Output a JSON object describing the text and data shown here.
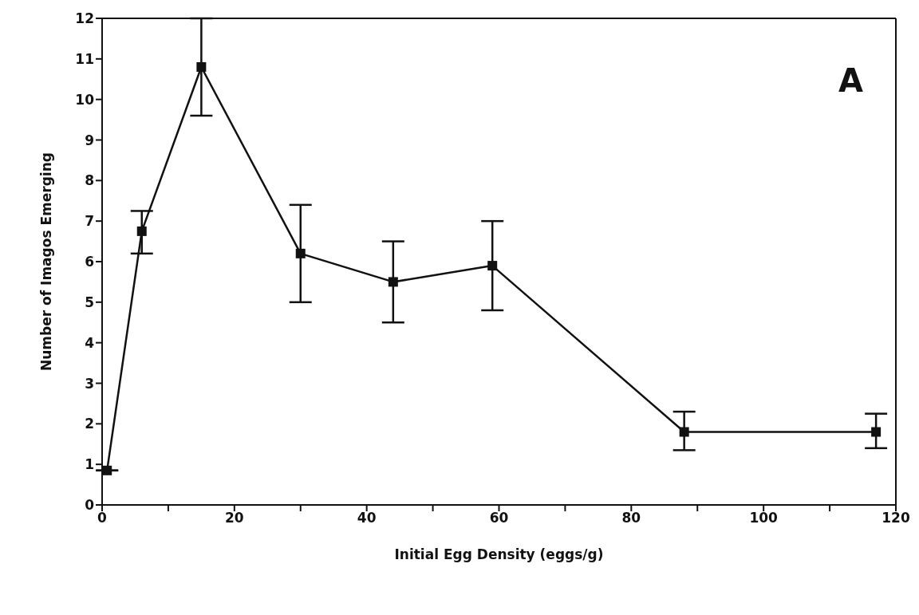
{
  "chart_data": {
    "type": "line",
    "xlabel": "Initial Egg Density   (eggs/g)",
    "ylabel": "Number of Imagos Emerging",
    "annotations": [
      "A"
    ],
    "x": [
      0.75,
      6,
      15,
      30,
      44,
      59,
      88,
      117
    ],
    "series": [
      {
        "color": "#111111",
        "values": [
          0.85,
          6.75,
          10.8,
          6.2,
          5.5,
          5.9,
          1.8,
          1.8
        ],
        "errors": [
          null,
          [
            6.2,
            7.25
          ],
          [
            9.6,
            12
          ],
          [
            5.0,
            7.4
          ],
          [
            4.5,
            6.5
          ],
          [
            4.8,
            7.0
          ],
          [
            1.35,
            2.3
          ],
          [
            1.4,
            2.25
          ]
        ]
      }
    ],
    "xlim": [
      0,
      120
    ],
    "xticks": [
      0,
      {
        "value": 10,
        "label": null
      },
      20,
      {
        "value": 30,
        "label": null
      },
      40,
      {
        "value": 50,
        "label": null
      },
      60,
      {
        "value": 70,
        "label": null
      },
      80,
      {
        "value": 90,
        "label": null
      },
      100,
      {
        "value": 110,
        "label": null
      },
      120
    ],
    "ylim": [
      0,
      12
    ],
    "yticks": [
      0,
      1,
      2,
      3,
      4,
      5,
      6,
      7,
      8,
      9,
      10,
      11,
      12
    ],
    "grid": false,
    "legend": false,
    "marker": "square",
    "line_style": "solid"
  }
}
